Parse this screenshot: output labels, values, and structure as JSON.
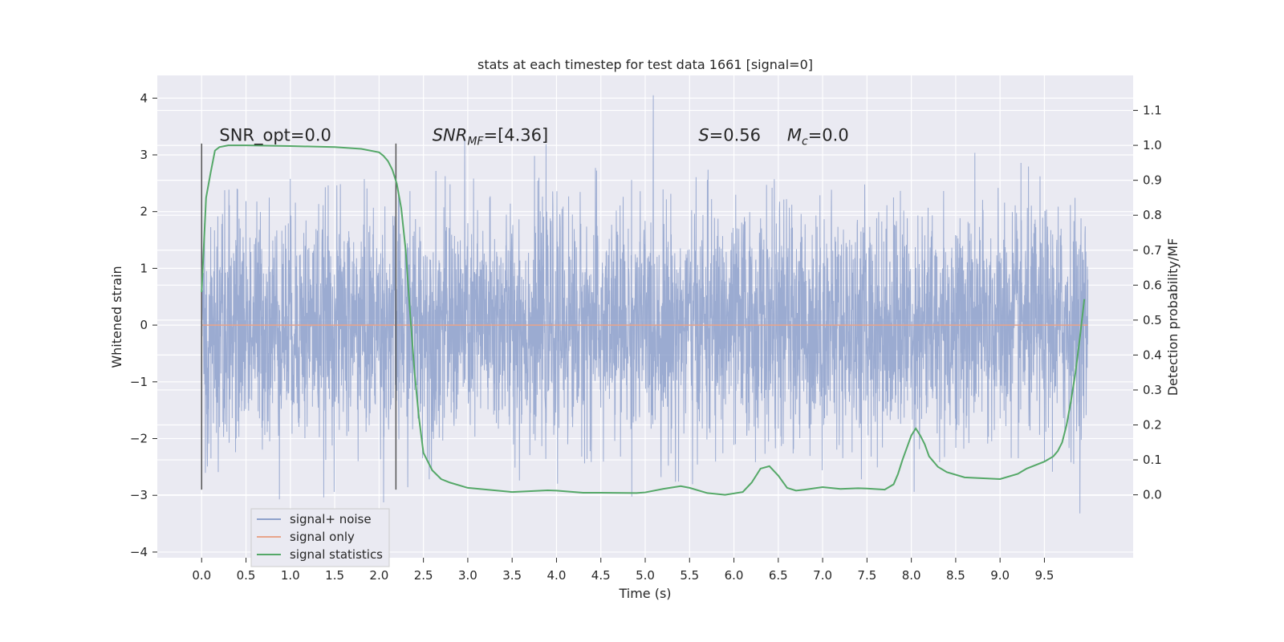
{
  "chart_data": {
    "type": "line",
    "title": "stats at each timestep for test data 1661 [signal=0]",
    "xlabel": "Time (s)",
    "ylabel": "Whitened strain",
    "ylabel_right": "Detection probability/MF",
    "xlim": [
      -0.5,
      10.5
    ],
    "ylim": [
      -4.1,
      4.4
    ],
    "ylim_right": [
      -0.18,
      1.2
    ],
    "x_ticks": [
      "0.0",
      "0.5",
      "1.0",
      "1.5",
      "2.0",
      "2.5",
      "3.0",
      "3.5",
      "4.0",
      "4.5",
      "5.0",
      "5.5",
      "6.0",
      "6.5",
      "7.0",
      "7.5",
      "8.0",
      "8.5",
      "9.0",
      "9.5"
    ],
    "y_ticks": [
      "4",
      "3",
      "2",
      "1",
      "0",
      "−1",
      "−2",
      "−3",
      "−4"
    ],
    "y_ticks_right": [
      "1.1",
      "1.0",
      "0.9",
      "0.8",
      "0.7",
      "0.6",
      "0.5",
      "0.4",
      "0.3",
      "0.2",
      "0.1",
      "0.0"
    ],
    "grid": true,
    "legend_position": "lower-left",
    "series": [
      {
        "name": "signal+ noise",
        "color": "#8da0cb",
        "axis": "left",
        "x_range": [
          0.0,
          9.99
        ],
        "y_range": [
          -3.75,
          4.05
        ],
        "description_values": {
          "noise_amplitude_std": 1.0
        }
      },
      {
        "name": "signal only",
        "color": "#e8a48a",
        "axis": "left",
        "x": [
          0.0,
          9.99
        ],
        "y": [
          0.0,
          0.0
        ]
      },
      {
        "name": "signal statistics",
        "color": "#55a868",
        "axis": "right",
        "x": [
          0.0,
          0.05,
          0.1,
          0.15,
          0.2,
          0.3,
          0.5,
          1.0,
          1.5,
          1.8,
          2.0,
          2.05,
          2.1,
          2.15,
          2.2,
          2.25,
          2.3,
          2.35,
          2.4,
          2.45,
          2.5,
          2.6,
          2.7,
          2.8,
          3.0,
          3.5,
          3.9,
          4.0,
          4.3,
          4.5,
          4.9,
          5.0,
          5.2,
          5.4,
          5.5,
          5.7,
          5.9,
          6.1,
          6.2,
          6.3,
          6.4,
          6.5,
          6.6,
          6.7,
          6.8,
          7.0,
          7.2,
          7.4,
          7.5,
          7.7,
          7.8,
          7.85,
          7.9,
          8.0,
          8.05,
          8.1,
          8.15,
          8.2,
          8.3,
          8.4,
          8.6,
          9.0,
          9.2,
          9.3,
          9.5,
          9.6,
          9.65,
          9.7,
          9.75,
          9.8,
          9.85,
          9.9,
          9.95
        ],
        "y": [
          0.58,
          0.85,
          0.92,
          0.985,
          0.995,
          1.0,
          1.0,
          0.998,
          0.995,
          0.99,
          0.98,
          0.97,
          0.955,
          0.93,
          0.89,
          0.82,
          0.7,
          0.52,
          0.35,
          0.22,
          0.12,
          0.07,
          0.045,
          0.035,
          0.02,
          0.008,
          0.013,
          0.012,
          0.006,
          0.006,
          0.005,
          0.007,
          0.017,
          0.025,
          0.02,
          0.005,
          0.0,
          0.008,
          0.035,
          0.075,
          0.082,
          0.055,
          0.02,
          0.012,
          0.015,
          0.022,
          0.017,
          0.019,
          0.018,
          0.015,
          0.03,
          0.06,
          0.1,
          0.17,
          0.19,
          0.17,
          0.145,
          0.11,
          0.08,
          0.065,
          0.05,
          0.045,
          0.06,
          0.075,
          0.095,
          0.11,
          0.125,
          0.15,
          0.2,
          0.27,
          0.35,
          0.45,
          0.56
        ]
      }
    ],
    "vlines": [
      {
        "x": 0.0,
        "y_range": [
          -2.9,
          3.2
        ],
        "color": "#555555"
      },
      {
        "x": 2.19,
        "y_range": [
          -2.9,
          3.2
        ],
        "color": "#555555"
      }
    ],
    "annotations": [
      {
        "text": "SNR_opt=0.0",
        "x": 0.2,
        "y": 3.25
      },
      {
        "text": "SNR",
        "sub": "MF",
        "suffix": "=[4.36]",
        "italic": true,
        "x": 2.6,
        "y": 3.25
      },
      {
        "text": "S",
        "suffix": "=0.56",
        "italic": true,
        "x": 5.6,
        "y": 3.25
      },
      {
        "text": "M",
        "sub": "c",
        "suffix": "=0.0",
        "italic": true,
        "x": 6.6,
        "y": 3.25
      }
    ],
    "colors": {
      "plot_background": "#eaeaf2",
      "grid": "#ffffff",
      "noise": "#8da0cb",
      "signal": "#e8a48a",
      "stats": "#55a868"
    }
  }
}
